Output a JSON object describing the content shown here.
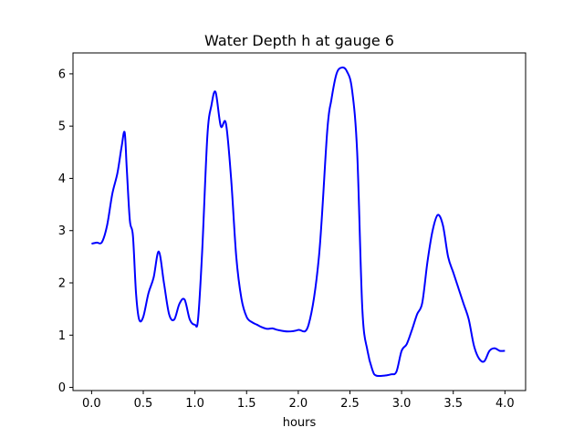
{
  "chart_data": {
    "type": "line",
    "title": "Water Depth h at gauge 6",
    "xlabel": "hours",
    "ylabel": "",
    "xlim": [
      -0.18,
      4.2
    ],
    "ylim": [
      -0.06,
      6.4
    ],
    "xticks": [
      0.0,
      0.5,
      1.0,
      1.5,
      2.0,
      2.5,
      3.0,
      3.5,
      4.0
    ],
    "xtick_labels": [
      "0.0",
      "0.5",
      "1.0",
      "1.5",
      "2.0",
      "2.5",
      "3.0",
      "3.5",
      "4.0"
    ],
    "yticks": [
      0,
      1,
      2,
      3,
      4,
      5,
      6
    ],
    "ytick_labels": [
      "0",
      "1",
      "2",
      "3",
      "4",
      "5",
      "6"
    ],
    "grid": false,
    "legend": "none",
    "series": [
      {
        "color": "#0000ff",
        "x": [
          0.0,
          0.05,
          0.1,
          0.15,
          0.2,
          0.25,
          0.29,
          0.32,
          0.34,
          0.37,
          0.4,
          0.43,
          0.46,
          0.5,
          0.55,
          0.6,
          0.65,
          0.7,
          0.75,
          0.8,
          0.85,
          0.9,
          0.95,
          1.0,
          1.03,
          1.07,
          1.12,
          1.16,
          1.2,
          1.25,
          1.3,
          1.35,
          1.4,
          1.45,
          1.5,
          1.55,
          1.6,
          1.65,
          1.7,
          1.75,
          1.8,
          1.9,
          2.0,
          2.1,
          2.2,
          2.28,
          2.32,
          2.37,
          2.42,
          2.47,
          2.52,
          2.57,
          2.62,
          2.67,
          2.72,
          2.75,
          2.8,
          2.85,
          2.9,
          2.95,
          3.0,
          3.05,
          3.1,
          3.15,
          3.2,
          3.25,
          3.3,
          3.35,
          3.4,
          3.45,
          3.5,
          3.55,
          3.6,
          3.65,
          3.7,
          3.75,
          3.8,
          3.85,
          3.9,
          3.95,
          4.0
        ],
        "values": [
          2.75,
          2.77,
          2.78,
          3.1,
          3.7,
          4.1,
          4.6,
          4.88,
          4.2,
          3.2,
          2.9,
          1.8,
          1.3,
          1.35,
          1.8,
          2.1,
          2.6,
          2.0,
          1.4,
          1.3,
          1.6,
          1.68,
          1.3,
          1.2,
          1.3,
          2.6,
          4.8,
          5.4,
          5.65,
          5.0,
          5.05,
          4.0,
          2.5,
          1.7,
          1.35,
          1.25,
          1.2,
          1.15,
          1.12,
          1.13,
          1.1,
          1.07,
          1.1,
          1.2,
          2.5,
          4.9,
          5.5,
          6.0,
          6.12,
          6.05,
          5.7,
          4.5,
          1.5,
          0.7,
          0.32,
          0.23,
          0.22,
          0.23,
          0.25,
          0.3,
          0.7,
          0.83,
          1.1,
          1.4,
          1.62,
          2.4,
          3.0,
          3.3,
          3.1,
          2.5,
          2.2,
          1.9,
          1.6,
          1.3,
          0.8,
          0.55,
          0.5,
          0.7,
          0.75,
          0.7,
          0.7
        ]
      }
    ]
  }
}
